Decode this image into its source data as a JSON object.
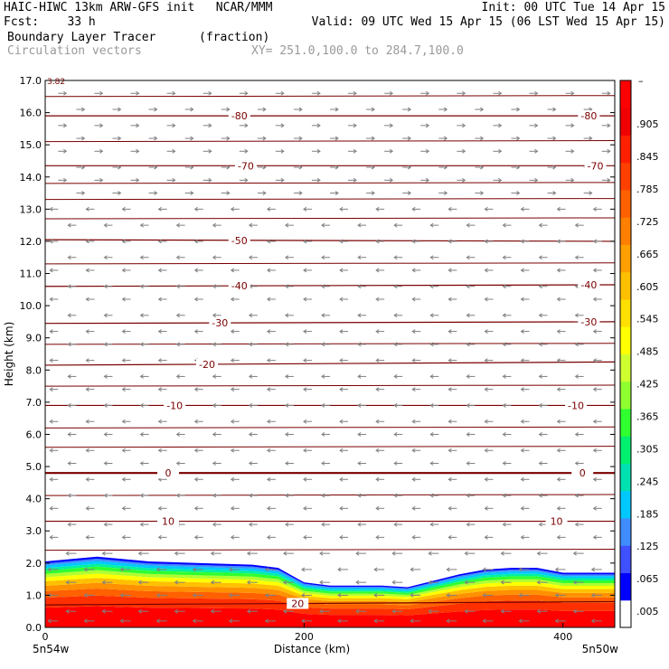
{
  "header": {
    "line1_left": "HAIC-HIWC 13km ARW-GFS init   NCAR/MMM",
    "line1_right": "Init: 00 UTC Tue 14 Apr 15",
    "line2_left": "Fcst:    33 h",
    "line2_right": "Valid: 09 UTC Wed 15 Apr 15 (06 LST Wed 15 Apr 15)",
    "line3_left": "Boundary Layer Tracer",
    "line3_mid": "(fraction)",
    "line4_left": "Circulation vectors",
    "line4_mid": "XY= 251.0,100.0 to 284.7,100.0"
  },
  "colors": {
    "contour": "#7a0000",
    "vector": "#808080",
    "scale": [
      "#ffffff",
      "#0000ff",
      "#3f50ff",
      "#3f8cff",
      "#00c8ff",
      "#00e0b0",
      "#00f070",
      "#30ff30",
      "#90ff30",
      "#d0ff30",
      "#ffff00",
      "#ffe000",
      "#ffc000",
      "#ffa000",
      "#ff8000",
      "#ff6000",
      "#ff4000",
      "#ff2000",
      "#f00000",
      "#ff0000"
    ]
  },
  "chart_data": {
    "type": "heatmap",
    "title": "Boundary Layer Tracer",
    "units": "(fraction)",
    "xlabel": "Distance (km)",
    "ylabel": "Height (km)",
    "xlim": [
      0,
      440
    ],
    "ylim": [
      0.0,
      17.0
    ],
    "x_ticks": [
      "0",
      "200",
      "400"
    ],
    "y_ticks": [
      "0.0",
      "1.0",
      "2.0",
      "3.0",
      "4.0",
      "5.0",
      "6.0",
      "7.0",
      "8.0",
      "9.0",
      "10.0",
      "11.0",
      "12.0",
      "13.0",
      "14.0",
      "15.0",
      "16.0",
      "17.0"
    ],
    "endpoints": [
      "5n54w",
      "5n50w"
    ],
    "corner_label": "3.82",
    "colorbar_labels": [
      ".005",
      ".065",
      ".125",
      ".185",
      ".245",
      ".305",
      ".365",
      ".425",
      ".485",
      ".545",
      ".605",
      ".665",
      ".725",
      ".785",
      ".845",
      ".905"
    ],
    "colorbar_top_label": "–",
    "tracer_top_km": {
      "x": [
        0,
        40,
        80,
        120,
        160,
        180,
        200,
        220,
        240,
        260,
        280,
        300,
        320,
        340,
        360,
        380,
        400,
        420,
        440
      ],
      "top": [
        2.05,
        2.2,
        2.05,
        2.0,
        1.95,
        1.85,
        1.4,
        1.3,
        1.3,
        1.3,
        1.25,
        1.45,
        1.65,
        1.8,
        1.85,
        1.85,
        1.7,
        1.7,
        1.7
      ]
    },
    "isotherms_C": [
      {
        "value": "-80",
        "y_left": 15.9,
        "y_right": 15.9,
        "label_x": [
          150,
          420
        ]
      },
      {
        "value": "-70",
        "y_left": 14.35,
        "y_right": 14.35,
        "label_x": [
          155,
          425
        ]
      },
      {
        "value": "-50",
        "y_left": 12.05,
        "y_right": 12.0,
        "label_x": [
          150
        ]
      },
      {
        "value": "-40",
        "y_left": 10.6,
        "y_right": 10.65,
        "label_x": [
          150,
          420
        ]
      },
      {
        "value": "-30",
        "y_left": 9.45,
        "y_right": 9.5,
        "label_x": [
          135,
          420
        ]
      },
      {
        "value": "-20",
        "y_left": 8.15,
        "y_right": 8.25,
        "label_x": [
          125
        ]
      },
      {
        "value": "-10",
        "y_left": 6.9,
        "y_right": 6.9,
        "label_x": [
          100,
          410
        ]
      },
      {
        "value": "0",
        "y_left": 4.8,
        "y_right": 4.8,
        "label_x": [
          95,
          415
        ]
      },
      {
        "value": "10",
        "y_left": 3.3,
        "y_right": 3.3,
        "label_x": [
          95,
          395
        ]
      },
      {
        "value": "20",
        "y_left": 0.7,
        "y_right": 0.8,
        "label_x": [
          195
        ]
      }
    ],
    "extra_isotherms_y": [
      16.5,
      15.1,
      13.8,
      13.3,
      12.7,
      11.3,
      8.8,
      7.5,
      6.2,
      5.6,
      4.1,
      2.4
    ],
    "wind_rows_km": [
      16.6,
      16.1,
      15.6,
      15.2,
      14.8,
      14.3,
      13.9,
      13.5,
      13.0,
      12.5,
      12.0,
      11.5,
      11.1,
      10.6,
      10.2,
      9.7,
      9.2,
      8.8,
      8.3,
      7.8,
      7.4,
      6.9,
      6.4,
      6.0,
      5.5,
      5.1,
      4.6,
      4.1,
      3.7,
      3.2,
      2.8,
      2.3,
      1.8,
      1.4,
      1.0,
      0.5,
      0.2
    ],
    "wind_dir_by_row": [
      "E",
      "E",
      "E",
      "E",
      "E",
      "E",
      "E",
      "E",
      "W",
      "W",
      "W",
      "W",
      "W",
      "W",
      "W",
      "W",
      "W",
      "W",
      "W",
      "W",
      "W",
      "W",
      "W",
      "W",
      "W",
      "W",
      "W",
      "W",
      "W",
      "W",
      "W",
      "W",
      "W",
      "W",
      "W",
      "W",
      "W"
    ]
  }
}
